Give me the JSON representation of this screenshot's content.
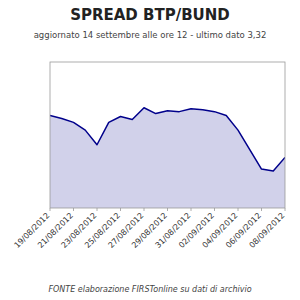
{
  "chart_data": {
    "type": "area",
    "title": "SPREAD   BTP/BUND",
    "subtitle": "aggiornato 14 settembre alle ore 12 - ultimo dato 3,32",
    "footer": "FONTE elaborazione FIRSTonline su dati di archivio",
    "categories": [
      "19/08/2012",
      null,
      "21/08/2012",
      null,
      "23/08/2012",
      null,
      "25/08/2012",
      null,
      "27/08/2012",
      null,
      "29/08/2012",
      null,
      "31/08/2012",
      null,
      "02/09/2012",
      null,
      "04/09/2012",
      null,
      "06/09/2012",
      null,
      "08/09/2012"
    ],
    "values": [
      3.75,
      3.72,
      3.68,
      3.6,
      3.45,
      3.68,
      3.74,
      3.71,
      3.83,
      3.77,
      3.8,
      3.79,
      3.82,
      3.81,
      3.79,
      3.75,
      3.6,
      3.4,
      3.2,
      3.18,
      3.32
    ],
    "color": "#00008B",
    "ylim": [
      2.8,
      4.3
    ],
    "yticks": [],
    "grid": false,
    "tick_labels": "x"
  }
}
